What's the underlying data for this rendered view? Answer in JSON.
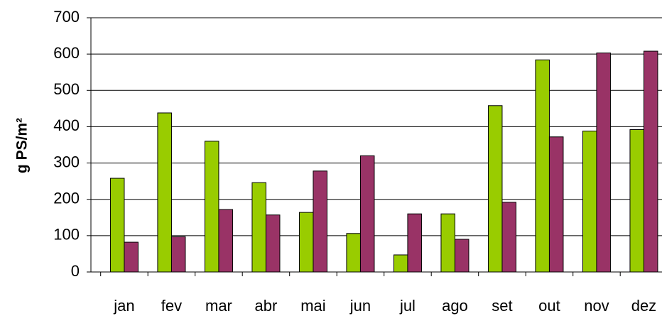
{
  "chart_data": {
    "type": "bar",
    "ylabel": "g PS/m²",
    "categories": [
      "jan",
      "fev",
      "mar",
      "abr",
      "mai",
      "jun",
      "jul",
      "ago",
      "set",
      "out",
      "nov",
      "dez"
    ],
    "series": [
      {
        "color": "#99cc00",
        "values": [
          258,
          438,
          360,
          246,
          164,
          106,
          47,
          160,
          458,
          584,
          388,
          392
        ]
      },
      {
        "color": "#993366",
        "values": [
          82,
          97,
          172,
          157,
          278,
          320,
          160,
          90,
          192,
          372,
          603,
          608
        ]
      }
    ],
    "ylim": [
      0,
      700
    ],
    "yticks": [
      0,
      100,
      200,
      300,
      400,
      500,
      600,
      700
    ],
    "grid": true
  }
}
